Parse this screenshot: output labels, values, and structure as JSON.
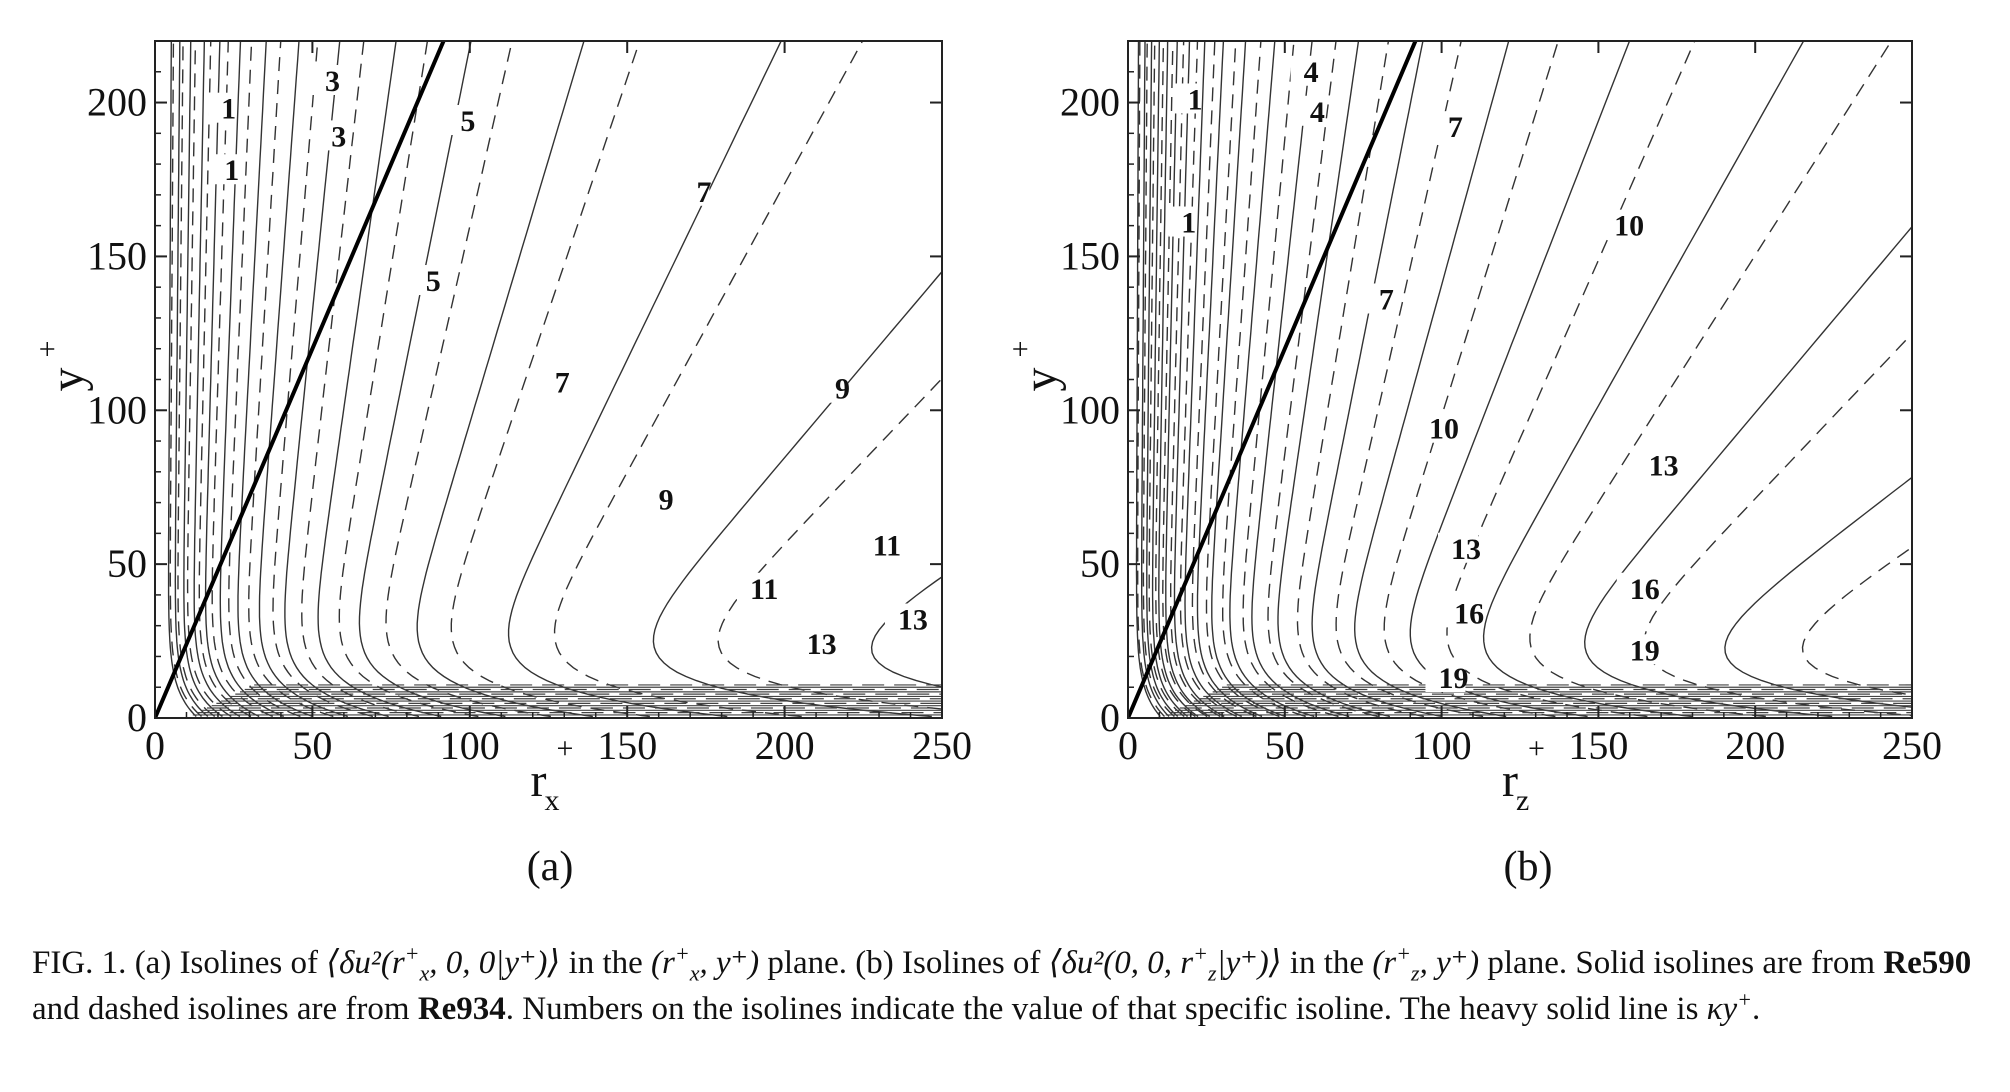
{
  "chart_data": [
    {
      "type": "contour",
      "panel_label": "(a)",
      "xlabel": "r",
      "xlabel_sup": "+",
      "xlabel_sub": "x",
      "ylabel": "y",
      "ylabel_sup": "+",
      "xlim": [
        0,
        250
      ],
      "ylim": [
        0,
        220
      ],
      "xticks": [
        "0",
        "50",
        "100",
        "150",
        "200",
        "250"
      ],
      "yticks": [
        "0",
        "50",
        "100",
        "150",
        "200"
      ],
      "heavy_line": {
        "name": "κy+",
        "slope": 2.4
      },
      "series": [
        {
          "name": "Re590",
          "style": "solid"
        },
        {
          "name": "Re934",
          "style": "dashed"
        }
      ],
      "contour_labels": [
        {
          "text": "1",
          "x": 21,
          "y": 198
        },
        {
          "text": "1",
          "x": 22,
          "y": 178
        },
        {
          "text": "3",
          "x": 54,
          "y": 207
        },
        {
          "text": "3",
          "x": 56,
          "y": 189
        },
        {
          "text": "5",
          "x": 97,
          "y": 194
        },
        {
          "text": "5",
          "x": 86,
          "y": 142
        },
        {
          "text": "7",
          "x": 172,
          "y": 171
        },
        {
          "text": "7",
          "x": 127,
          "y": 109
        },
        {
          "text": "9",
          "x": 216,
          "y": 107
        },
        {
          "text": "9",
          "x": 160,
          "y": 71
        },
        {
          "text": "11",
          "x": 228,
          "y": 56
        },
        {
          "text": "11",
          "x": 189,
          "y": 42
        },
        {
          "text": "13",
          "x": 236,
          "y": 32
        },
        {
          "text": "13",
          "x": 207,
          "y": 24
        }
      ],
      "kx": [
        4,
        6,
        8.5,
        11.5,
        14.8,
        19,
        24,
        30,
        37,
        46,
        57,
        72,
        95,
        130,
        180,
        250,
        350,
        500
      ]
    },
    {
      "type": "contour",
      "panel_label": "(b)",
      "xlabel": "r",
      "xlabel_sup": "+",
      "xlabel_sub": "z",
      "ylabel": "y",
      "ylabel_sup": "+",
      "xlim": [
        0,
        250
      ],
      "ylim": [
        0,
        220
      ],
      "xticks": [
        "0",
        "50",
        "100",
        "150",
        "200",
        "250"
      ],
      "yticks": [
        "0",
        "50",
        "100",
        "150",
        "200"
      ],
      "heavy_line": {
        "name": "κy+",
        "slope": 2.4
      },
      "series": [
        {
          "name": "Re590",
          "style": "solid"
        },
        {
          "name": "Re934",
          "style": "dashed"
        }
      ],
      "contour_labels": [
        {
          "text": "1",
          "x": 19,
          "y": 201
        },
        {
          "text": "1",
          "x": 17,
          "y": 161
        },
        {
          "text": "4",
          "x": 56,
          "y": 210
        },
        {
          "text": "4",
          "x": 58,
          "y": 197
        },
        {
          "text": "7",
          "x": 102,
          "y": 192
        },
        {
          "text": "7",
          "x": 80,
          "y": 136
        },
        {
          "text": "10",
          "x": 155,
          "y": 160
        },
        {
          "text": "10",
          "x": 96,
          "y": 94
        },
        {
          "text": "13",
          "x": 166,
          "y": 82
        },
        {
          "text": "13",
          "x": 103,
          "y": 55
        },
        {
          "text": "16",
          "x": 160,
          "y": 42
        },
        {
          "text": "16",
          "x": 104,
          "y": 34
        },
        {
          "text": "19",
          "x": 160,
          "y": 22
        },
        {
          "text": "19",
          "x": 99,
          "y": 13
        }
      ],
      "kx": [
        2.5,
        4,
        5.5,
        7.2,
        9,
        11,
        13.5,
        16.5,
        20,
        24,
        29,
        35,
        42,
        51,
        62,
        76,
        94,
        118,
        150,
        195,
        260,
        350,
        480
      ]
    }
  ],
  "caption": {
    "fig_label": "FIG. 1.",
    "part_a_intro": "(a) Isolines of",
    "part_a_expr": "⟨δu²(r",
    "part_a_expr_sup": "+",
    "part_a_expr_sub": "x",
    "part_a_expr_tail": ", 0, 0|y⁺)⟩",
    "part_a_mid": "in the",
    "part_a_plane": "(r",
    "part_a_plane_sup": "+",
    "part_a_plane_sub": "x",
    "part_a_plane_tail": ", y⁺)",
    "part_a_end": "plane.",
    "part_b_intro": "(b) Isolines of",
    "part_b_expr": "⟨δu²(0, 0, r",
    "part_b_expr_sup": "+",
    "part_b_expr_sub": "z",
    "part_b_expr_tail": "|y⁺)⟩",
    "part_b_mid": "in the",
    "part_b_plane": "(r",
    "part_b_plane_sup": "+",
    "part_b_plane_sub": "z",
    "part_b_plane_tail": ", y⁺)",
    "part_b_end": "plane. Solid isolines are from",
    "re1": "Re590",
    "and_dashed": "and dashed isolines are from",
    "re2": "Re934",
    "numbers_sentence": ". Numbers on the isolines indicate the value of that specific isoline. The heavy solid line is",
    "kappa": "κy",
    "kappa_sup": "+",
    "period": "."
  }
}
